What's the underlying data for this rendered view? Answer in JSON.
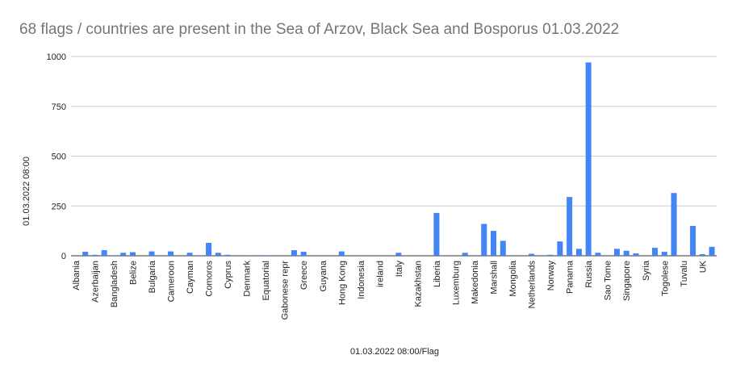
{
  "chart_data": {
    "type": "bar",
    "title": "68 flags / countries are present in the Sea of Arzov, Black Sea and Bosporus 01.03.2022",
    "x_label": "01.03.2022 08:00/Flag",
    "y_label": "01.03.2022 08:00",
    "categories": [
      "Albania",
      null,
      "Azerbaijan",
      null,
      "Bangladesh",
      null,
      "Belize",
      null,
      "Bulgaria",
      null,
      "Cameroon",
      null,
      "Cayman",
      null,
      "Comoros",
      null,
      "Cyprus",
      null,
      "Denmark",
      null,
      "Equatorial",
      null,
      "Gabonese repr",
      null,
      "Greece",
      null,
      "Guyana",
      null,
      "Hong Kong",
      null,
      "Indonesia",
      null,
      "ireland",
      null,
      "Italy",
      null,
      "Kazakhstan",
      null,
      "Liberia",
      null,
      "Luxemburg",
      null,
      "Makedonia",
      null,
      "Marshall",
      null,
      "Mongolia",
      null,
      "Netherlands",
      null,
      "Norway",
      null,
      "Panama",
      null,
      "Russia",
      null,
      "Sao Tome",
      null,
      "Singapore",
      null,
      "Syria",
      null,
      "Togolese",
      null,
      "Tuvalu",
      null,
      "UK",
      null
    ],
    "values": [
      0,
      20,
      5,
      28,
      3,
      15,
      18,
      0,
      22,
      0,
      22,
      0,
      15,
      3,
      65,
      15,
      5,
      0,
      3,
      0,
      3,
      0,
      0,
      28,
      20,
      0,
      0,
      0,
      22,
      0,
      0,
      0,
      0,
      0,
      15,
      0,
      0,
      0,
      215,
      0,
      0,
      15,
      0,
      160,
      125,
      75,
      0,
      0,
      10,
      0,
      5,
      72,
      295,
      35,
      970,
      15,
      0,
      35,
      25,
      12,
      0,
      40,
      20,
      315,
      0,
      150,
      8,
      45
    ],
    "color": "#4285f4",
    "ylim": [
      0,
      1000
    ],
    "yticks": [
      0,
      250,
      500,
      750,
      1000
    ],
    "grid": true
  }
}
